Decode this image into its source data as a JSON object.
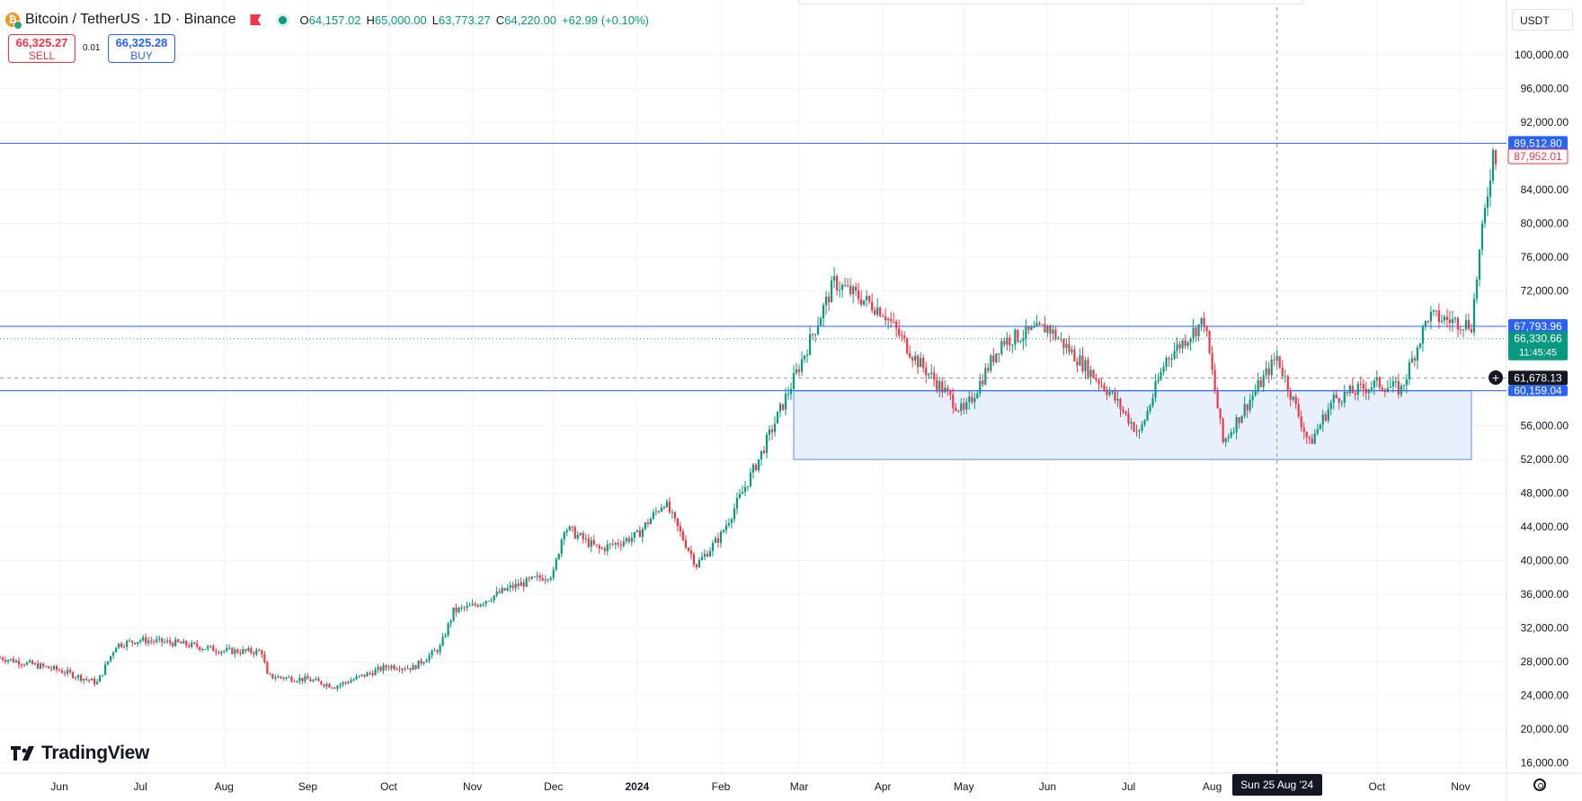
{
  "header": {
    "symbol_title": "Bitcoin / TetherUS · 1D · Binance",
    "ohlc": {
      "o_label": "O",
      "o": "64,157.02",
      "h_label": "H",
      "h": "65,000.00",
      "l_label": "L",
      "l": "63,773.27",
      "c_label": "C",
      "c": "64,220.00",
      "change": "+62.99 (+0.10%)"
    },
    "icons": {
      "coin": "bitcoin-icon",
      "flag": "flag-icon",
      "status": "market-open-dot-icon"
    }
  },
  "trade": {
    "sell_price": "66,325.27",
    "sell_label": "SELL",
    "spread": "0.01",
    "buy_price": "66,325.28",
    "buy_label": "BUY"
  },
  "currency_selector": {
    "value": "USDT"
  },
  "branding": {
    "logo_text": "TradingView"
  },
  "crosshair": {
    "date": "Sun 25 Aug '24",
    "price": "61,678.13"
  },
  "colors": {
    "up": "#089981",
    "down": "#f23645",
    "line_blue": "#2962ff",
    "zone_fill": "#e8f0fe",
    "zone_border": "#90b4f0"
  },
  "chart_data": {
    "type": "candlestick",
    "y_ticks": [
      "100,000.00",
      "96,000.00",
      "92,000.00",
      "84,000.00",
      "80,000.00",
      "76,000.00",
      "72,000.00",
      "56,000.00",
      "52,000.00",
      "48,000.00",
      "44,000.00",
      "40,000.00",
      "36,000.00",
      "32,000.00",
      "28,000.00",
      "24,000.00",
      "20,000.00",
      "16,000.00"
    ],
    "y_tick_values": [
      100000,
      96000,
      92000,
      84000,
      80000,
      76000,
      72000,
      56000,
      52000,
      48000,
      44000,
      40000,
      36000,
      32000,
      28000,
      24000,
      20000,
      16000
    ],
    "x_labels": [
      {
        "label": "Jun",
        "date": "2023-06-01"
      },
      {
        "label": "Jul",
        "date": "2023-07-01"
      },
      {
        "label": "Aug",
        "date": "2023-08-01"
      },
      {
        "label": "Sep",
        "date": "2023-09-01"
      },
      {
        "label": "Oct",
        "date": "2023-10-01"
      },
      {
        "label": "Nov",
        "date": "2023-11-01"
      },
      {
        "label": "Dec",
        "date": "2023-12-01"
      },
      {
        "label": "2024",
        "date": "2024-01-01"
      },
      {
        "label": "Feb",
        "date": "2024-02-01"
      },
      {
        "label": "Mar",
        "date": "2024-03-01"
      },
      {
        "label": "Apr",
        "date": "2024-04-01"
      },
      {
        "label": "May",
        "date": "2024-05-01"
      },
      {
        "label": "Jun",
        "date": "2024-06-01"
      },
      {
        "label": "Jul",
        "date": "2024-07-01"
      },
      {
        "label": "Aug",
        "date": "2024-08-01"
      },
      {
        "label": "Oct",
        "date": "2024-10-01"
      },
      {
        "label": "Nov",
        "date": "2024-11-01"
      }
    ],
    "x_range": [
      "2023-05-10",
      "2024-11-18"
    ],
    "y_range": [
      14800,
      106500
    ],
    "close_path": [
      {
        "date": "2023-05-10",
        "close": 28500
      },
      {
        "date": "2023-06-01",
        "close": 27000
      },
      {
        "date": "2023-06-15",
        "close": 25500
      },
      {
        "date": "2023-06-22",
        "close": 30000
      },
      {
        "date": "2023-07-01",
        "close": 30600
      },
      {
        "date": "2023-07-15",
        "close": 30200
      },
      {
        "date": "2023-08-01",
        "close": 29300
      },
      {
        "date": "2023-08-15",
        "close": 29200
      },
      {
        "date": "2023-08-17",
        "close": 26300
      },
      {
        "date": "2023-09-01",
        "close": 25900
      },
      {
        "date": "2023-09-11",
        "close": 25100
      },
      {
        "date": "2023-10-01",
        "close": 27500
      },
      {
        "date": "2023-10-10",
        "close": 27300
      },
      {
        "date": "2023-10-20",
        "close": 29700
      },
      {
        "date": "2023-10-25",
        "close": 34000
      },
      {
        "date": "2023-11-01",
        "close": 34600
      },
      {
        "date": "2023-11-15",
        "close": 36800
      },
      {
        "date": "2023-12-01",
        "close": 38500
      },
      {
        "date": "2023-12-05",
        "close": 44000
      },
      {
        "date": "2023-12-18",
        "close": 41300
      },
      {
        "date": "2024-01-01",
        "close": 43000
      },
      {
        "date": "2024-01-11",
        "close": 47000
      },
      {
        "date": "2024-01-23",
        "close": 39500
      },
      {
        "date": "2024-02-01",
        "close": 43000
      },
      {
        "date": "2024-02-15",
        "close": 52000
      },
      {
        "date": "2024-02-28",
        "close": 61500
      },
      {
        "date": "2024-03-14",
        "close": 73000
      },
      {
        "date": "2024-04-01",
        "close": 69600
      },
      {
        "date": "2024-04-13",
        "close": 64000
      },
      {
        "date": "2024-05-01",
        "close": 57500
      },
      {
        "date": "2024-05-15",
        "close": 66000
      },
      {
        "date": "2024-06-01",
        "close": 67700
      },
      {
        "date": "2024-06-24",
        "close": 60000
      },
      {
        "date": "2024-07-05",
        "close": 55000
      },
      {
        "date": "2024-07-15",
        "close": 64000
      },
      {
        "date": "2024-07-29",
        "close": 68500
      },
      {
        "date": "2024-08-05",
        "close": 54000
      },
      {
        "date": "2024-08-25",
        "close": 64200
      },
      {
        "date": "2024-09-06",
        "close": 53800
      },
      {
        "date": "2024-09-15",
        "close": 59200
      },
      {
        "date": "2024-10-01",
        "close": 61000
      },
      {
        "date": "2024-10-10",
        "close": 60300
      },
      {
        "date": "2024-10-20",
        "close": 69000
      },
      {
        "date": "2024-11-05",
        "close": 68000
      },
      {
        "date": "2024-11-08",
        "close": 76500
      },
      {
        "date": "2024-11-13",
        "close": 88500
      },
      {
        "date": "2024-11-14",
        "close": 87952.01
      }
    ],
    "horizontal_lines": [
      {
        "price": 89512.8,
        "label": "89,512.80",
        "style": "solid"
      },
      {
        "price": 67793.96,
        "label": "67,793.96",
        "style": "solid"
      },
      {
        "price": 60159.04,
        "label": "60,159.04",
        "style": "solid"
      }
    ],
    "current_price": {
      "price": 87952.01,
      "label": "87,952.01"
    },
    "dotted_line": {
      "price": 66330.66,
      "label": "66,330.66",
      "countdown": "11:45:45"
    },
    "zone": {
      "from_date": "2024-02-28",
      "to_date": "2024-11-05",
      "top": 60159.04,
      "bottom": 52000
    }
  }
}
